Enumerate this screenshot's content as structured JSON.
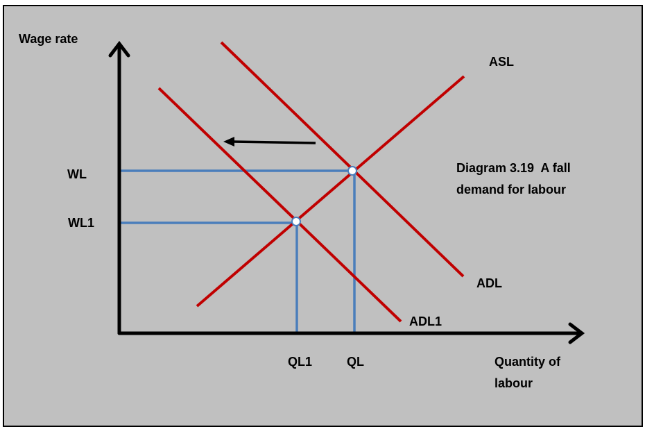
{
  "axes": {
    "y_label": "Wage rate",
    "x_label": [
      "Quantity of",
      "labour"
    ]
  },
  "curves": {
    "supply": "ASL",
    "demand": "ADL",
    "new_demand": "ADL1"
  },
  "levels": {
    "wage": "WL",
    "new_wage": "WL1",
    "quantity": "QL",
    "new_quantity": "QL1"
  },
  "caption": [
    "Diagram 3.19  A fall",
    "demand for labour"
  ]
}
